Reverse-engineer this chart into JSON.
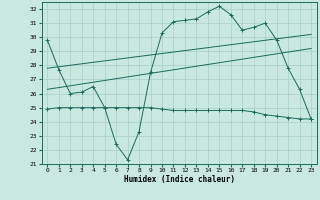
{
  "xlabel": "Humidex (Indice chaleur)",
  "xlim": [
    -0.5,
    23.5
  ],
  "ylim": [
    21,
    32.5
  ],
  "yticks": [
    21,
    22,
    23,
    24,
    25,
    26,
    27,
    28,
    29,
    30,
    31,
    32
  ],
  "xticks": [
    0,
    1,
    2,
    3,
    4,
    5,
    6,
    7,
    8,
    9,
    10,
    11,
    12,
    13,
    14,
    15,
    16,
    17,
    18,
    19,
    20,
    21,
    22,
    23
  ],
  "background_color": "#c8e8e0",
  "grid_color": "#a8cec8",
  "line_color": "#1a6b5a",
  "line1_x": [
    0,
    1,
    2,
    3,
    4,
    5,
    6,
    7,
    8,
    9,
    10,
    11,
    12,
    13,
    14,
    15,
    16,
    17,
    18,
    19,
    20,
    21,
    22,
    23
  ],
  "line1_y": [
    29.8,
    27.7,
    26.0,
    26.1,
    26.5,
    25.0,
    22.4,
    21.3,
    23.3,
    27.5,
    30.3,
    31.1,
    31.2,
    31.3,
    31.8,
    32.2,
    31.6,
    30.5,
    30.7,
    31.0,
    29.8,
    27.8,
    26.3,
    24.2
  ],
  "line2_x": [
    0,
    23
  ],
  "line2_y": [
    27.8,
    30.2
  ],
  "line3_x": [
    0,
    23
  ],
  "line3_y": [
    26.3,
    29.2
  ],
  "line4_x": [
    0,
    1,
    2,
    3,
    4,
    5,
    6,
    7,
    8,
    9,
    10,
    11,
    12,
    13,
    14,
    15,
    16,
    17,
    18,
    19,
    20,
    21,
    22,
    23
  ],
  "line4_y": [
    24.9,
    25.0,
    25.0,
    25.0,
    25.0,
    25.0,
    25.0,
    25.0,
    25.0,
    25.0,
    24.9,
    24.8,
    24.8,
    24.8,
    24.8,
    24.8,
    24.8,
    24.8,
    24.7,
    24.5,
    24.4,
    24.3,
    24.2,
    24.2
  ]
}
